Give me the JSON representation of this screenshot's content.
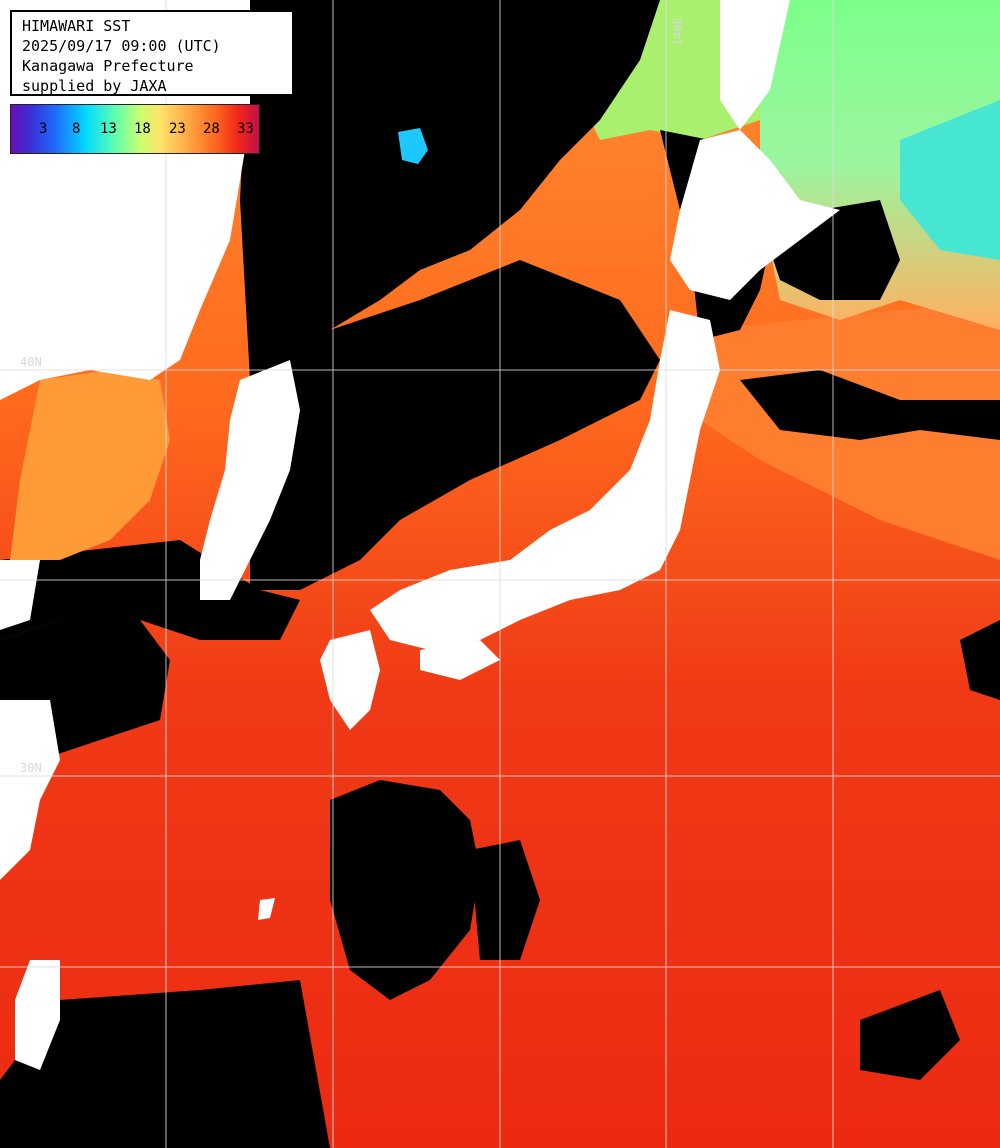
{
  "info": {
    "line1": "HIMAWARI SST",
    "line2": "2025/09/17 09:00 (UTC)",
    "line3": "Kanagawa Prefecture",
    "line4": "supplied by JAXA"
  },
  "legend": {
    "ticks": [
      "3",
      "8",
      "13",
      "18",
      "23",
      "28",
      "33"
    ],
    "colors": [
      "#6a0db5",
      "#1f6cff",
      "#00d8ff",
      "#c8ff6e",
      "#ffb04a",
      "#f0241a",
      "#c0104a"
    ]
  },
  "grid": {
    "labels": {
      "lon_top": "140E",
      "lat_40": "40N",
      "lat_30": "30N"
    }
  },
  "colors": {
    "land": "#ffffff",
    "cloud": "#000000",
    "warm_sea": "#f0401a",
    "mid_sea": "#ff7a2a",
    "cool_sea": "#9cf07a",
    "cold_sea": "#3ee8d8",
    "grid": "#dcdcdc"
  }
}
